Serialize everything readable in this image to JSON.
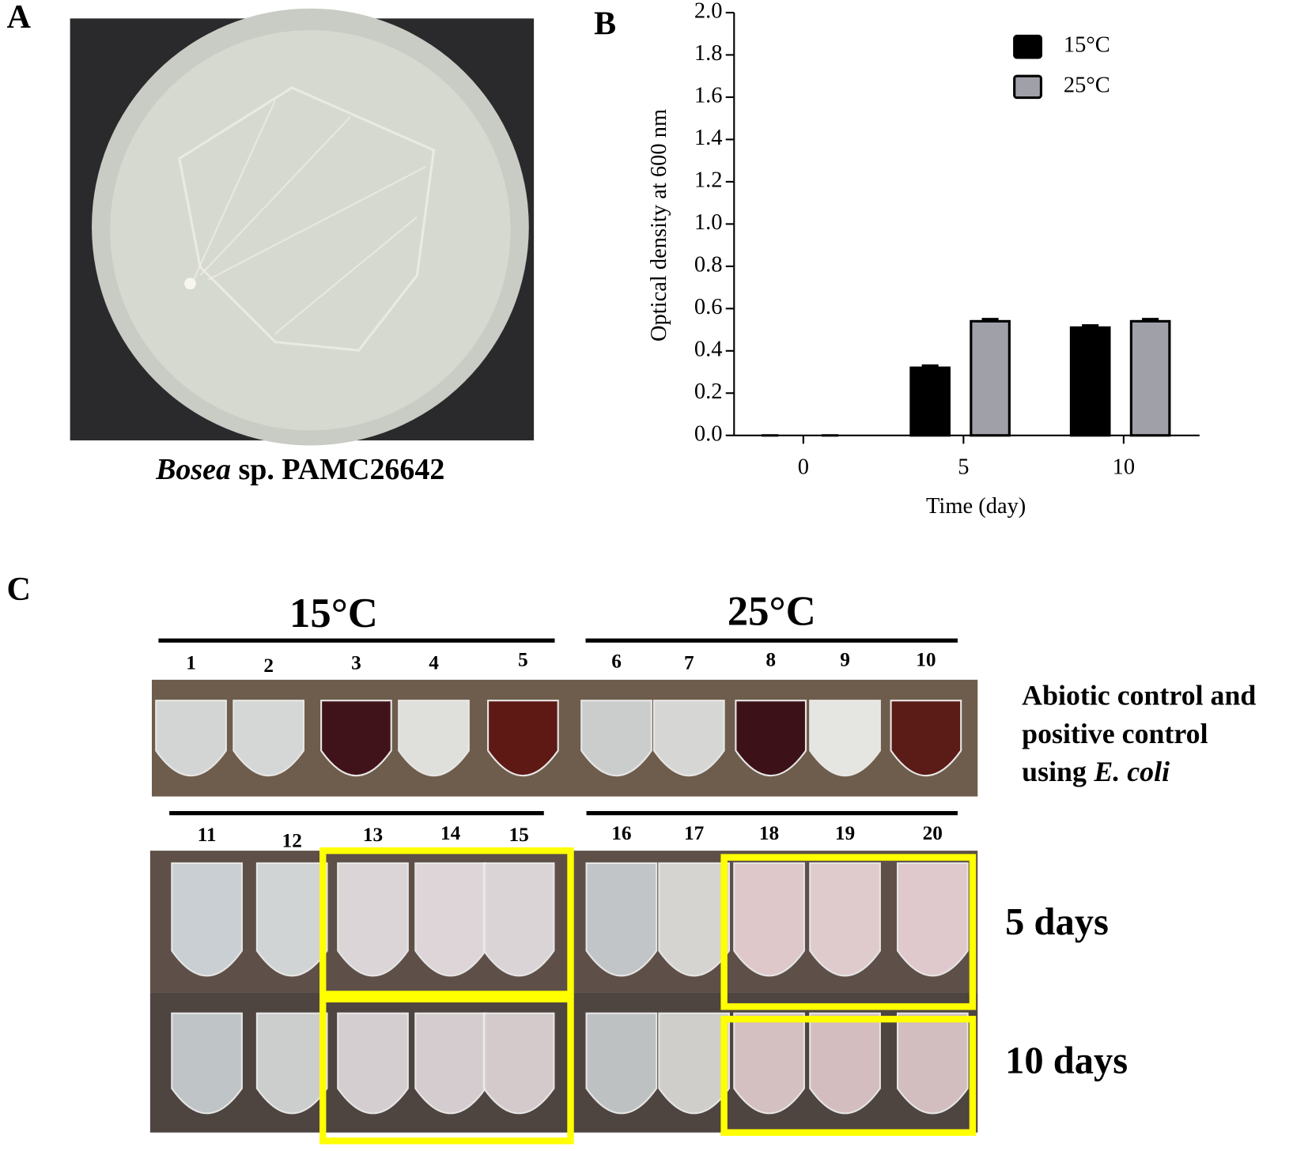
{
  "panel_a": {
    "label": "A",
    "caption_italic": "Bosea",
    "caption_rest": "sp. PAMC26642"
  },
  "chart_data": {
    "type": "bar",
    "label": "B",
    "y_label": "Optical density at 600 nm",
    "x_label": "Time (day)",
    "categories": [
      "0",
      "5",
      "10"
    ],
    "series": [
      {
        "name": "15°C",
        "color": "#000000",
        "values": [
          0,
          0.32,
          0.51
        ],
        "errors": [
          0,
          0.01,
          0.01
        ]
      },
      {
        "name": "25°C",
        "color": "#a0a0a8",
        "values": [
          0,
          0.54,
          0.54
        ],
        "errors": [
          0,
          0.01,
          0.01
        ]
      }
    ],
    "ylim": [
      0,
      2.0
    ],
    "yticks": [
      {
        "value": 0,
        "label": "0.0"
      },
      0.2,
      0.4,
      0.6,
      0.8,
      {
        "value": 1,
        "label": "1.0"
      },
      1.2,
      1.4,
      1.6,
      1.8,
      {
        "value": 2,
        "label": "2.0"
      }
    ],
    "legend": "upper right"
  },
  "panel_c": {
    "label": "C",
    "group_left": "15°C",
    "group_right": "25°C",
    "tubes_top": [
      "1",
      "2",
      "3",
      "4",
      "5",
      "6",
      "7",
      "8",
      "9",
      "10"
    ],
    "tubes_bottom": [
      "11",
      "12",
      "13",
      "14",
      "15",
      "16",
      "17",
      "18",
      "19",
      "20"
    ],
    "control_line1": "Abiotic control and",
    "control_line2": "positive control",
    "control_line3": "using",
    "control_italic": "E. coli",
    "row_5": "5 days",
    "row_10": "10 days"
  }
}
